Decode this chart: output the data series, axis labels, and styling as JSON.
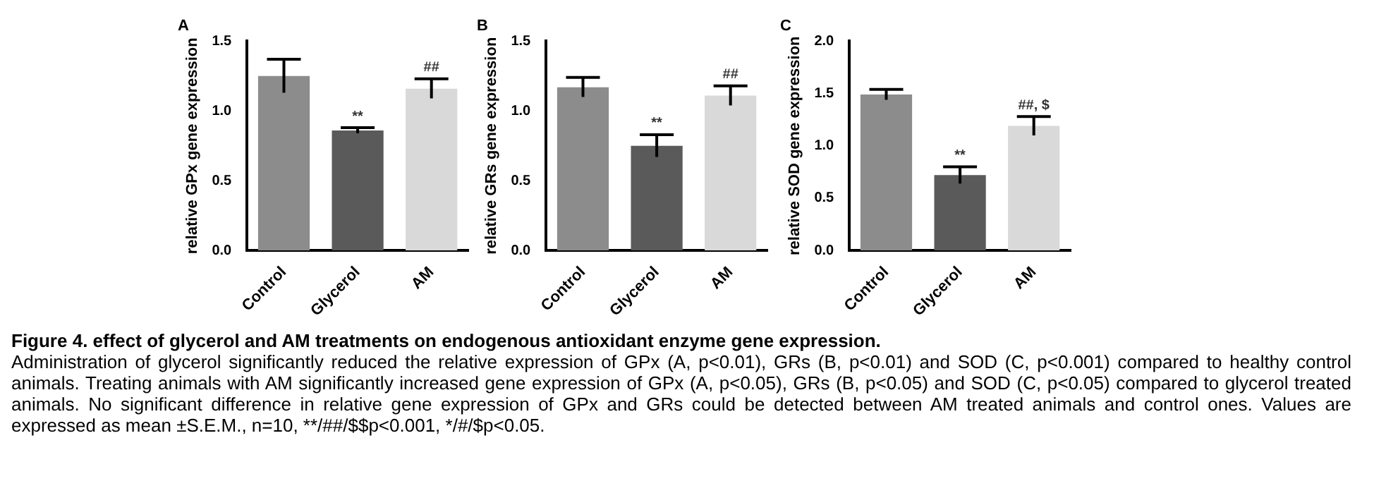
{
  "chart_data": [
    {
      "type": "bar",
      "title": "A",
      "ylabel": "relative GPx gene expression",
      "categories": [
        "Control",
        "Glycerol",
        "AM"
      ],
      "values": [
        1.25,
        0.86,
        1.16
      ],
      "errors": [
        0.12,
        0.02,
        0.07
      ],
      "colors": [
        "#8c8c8c",
        "#5a5a5a",
        "#d9d9d9"
      ],
      "ylim": [
        0,
        1.5
      ],
      "yticks": [
        {
          "value": 0,
          "label": "0.0"
        },
        {
          "value": 0.5,
          "label": "0.5"
        },
        {
          "value": 1,
          "label": "1.0"
        },
        {
          "value": 1.5,
          "label": "1.5"
        }
      ],
      "grid": false,
      "legend": false,
      "annotations": [
        {
          "text": "**",
          "x": "Glycerol",
          "y": 0.88
        },
        {
          "text": "##",
          "x": "AM",
          "y": 1.23
        }
      ]
    },
    {
      "type": "bar",
      "title": "B",
      "ylabel": "relative GRs gene expression",
      "categories": [
        "Control",
        "Glycerol",
        "AM"
      ],
      "values": [
        1.17,
        0.75,
        1.11
      ],
      "errors": [
        0.07,
        0.08,
        0.07
      ],
      "colors": [
        "#8c8c8c",
        "#5a5a5a",
        "#d9d9d9"
      ],
      "ylim": [
        0,
        1.5
      ],
      "yticks": [
        {
          "value": 0,
          "label": "0.0"
        },
        {
          "value": 0.5,
          "label": "0.5"
        },
        {
          "value": 1,
          "label": "1.0"
        },
        {
          "value": 1.5,
          "label": "1.5"
        }
      ],
      "grid": false,
      "legend": false,
      "annotations": [
        {
          "text": "**",
          "x": "Glycerol",
          "y": 0.83
        },
        {
          "text": "##",
          "x": "AM",
          "y": 1.18
        }
      ]
    },
    {
      "type": "bar",
      "title": "C",
      "ylabel": "relative SOD gene expression",
      "categories": [
        "Control",
        "Glycerol",
        "AM"
      ],
      "values": [
        1.49,
        0.72,
        1.19
      ],
      "errors": [
        0.05,
        0.08,
        0.09
      ],
      "colors": [
        "#8c8c8c",
        "#5a5a5a",
        "#d9d9d9"
      ],
      "ylim": [
        0,
        2.0
      ],
      "yticks": [
        {
          "value": 0,
          "label": "0.0"
        },
        {
          "value": 0.5,
          "label": "0.5"
        },
        {
          "value": 1,
          "label": "1.0"
        },
        {
          "value": 1.5,
          "label": "1.5"
        },
        {
          "value": 2,
          "label": "2.0"
        }
      ],
      "grid": false,
      "legend": false,
      "annotations": [
        {
          "text": "**",
          "x": "Glycerol",
          "y": 0.8
        },
        {
          "text": "##, $",
          "x": "AM",
          "y": 1.28
        }
      ]
    },
    {
      "type": "other",
      "title": "Figure 4. effect of glycerol and AM treatments on endogenous antioxidant enzyme gene expression.",
      "annotations": [
        "Administration of glycerol significantly reduced the relative expression of GPx (A, p<0.01), GRs (B, p<0.01) and SOD (C, p<0.001) compared to healthy control animals. Treating animals with AM significantly increased gene expression of GPx (A, p<0.05), GRs (B, p<0.05) and SOD (C, p<0.05) compared to glycerol treated animals. No significant difference in relative gene expression of GPx and GRs could be detected between AM treated animals and control ones. Values are expressed as mean ±S.E.M., n=10, **/##/$$p<0.001, */#/$p<0.05."
      ]
    }
  ]
}
